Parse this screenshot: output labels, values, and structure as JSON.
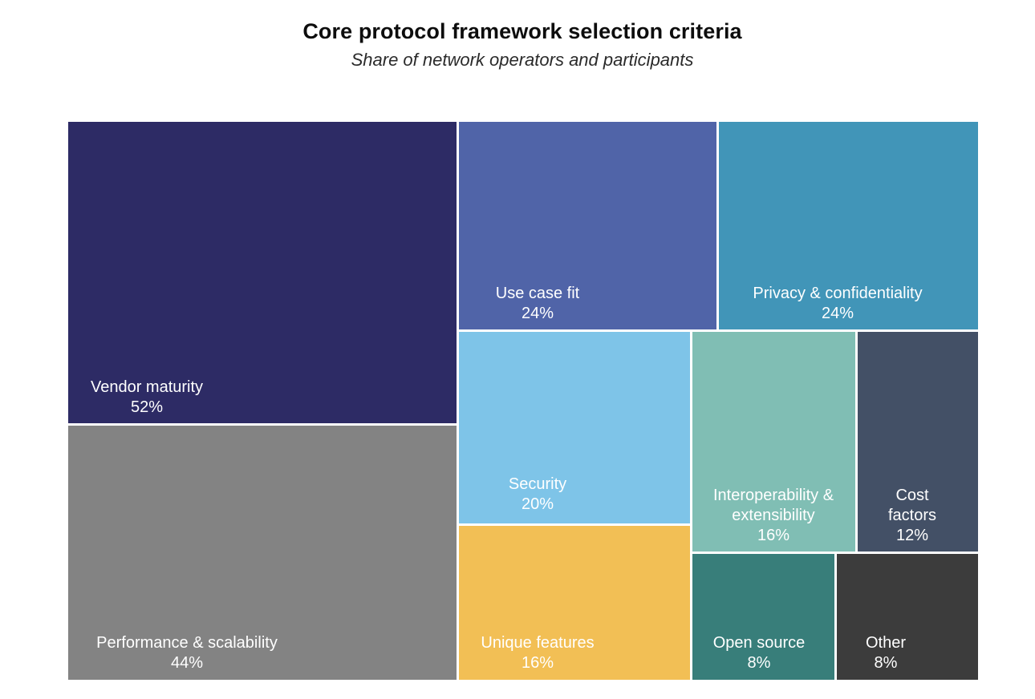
{
  "chart_data": {
    "type": "treemap",
    "title": "Core protocol framework selection criteria",
    "subtitle": "Share of network operators and participants",
    "unit": "%",
    "items": [
      {
        "id": "vendor-maturity",
        "name_lines": [
          "Vendor maturity"
        ],
        "value": 52,
        "value_label": "52%",
        "color": "#2d2b65"
      },
      {
        "id": "performance-scalability",
        "name_lines": [
          "Performance & scalability"
        ],
        "value": 44,
        "value_label": "44%",
        "color": "#838383"
      },
      {
        "id": "use-case-fit",
        "name_lines": [
          "Use case fit"
        ],
        "value": 24,
        "value_label": "24%",
        "color": "#5064a8"
      },
      {
        "id": "privacy-confidentiality",
        "name_lines": [
          "Privacy & confidentiality"
        ],
        "value": 24,
        "value_label": "24%",
        "color": "#4195b8"
      },
      {
        "id": "security",
        "name_lines": [
          "Security"
        ],
        "value": 20,
        "value_label": "20%",
        "color": "#7ec4e8"
      },
      {
        "id": "unique-features",
        "name_lines": [
          "Unique features"
        ],
        "value": 16,
        "value_label": "16%",
        "color": "#f2bf55"
      },
      {
        "id": "interoperability-extensibility",
        "name_lines": [
          "Interoperability &",
          "extensibility"
        ],
        "value": 16,
        "value_label": "16%",
        "color": "#80beb4"
      },
      {
        "id": "cost-factors",
        "name_lines": [
          "Cost",
          "factors"
        ],
        "value": 12,
        "value_label": "12%",
        "color": "#435066"
      },
      {
        "id": "open-source",
        "name_lines": [
          "Open source"
        ],
        "value": 8,
        "value_label": "8%",
        "color": "#387e7a"
      },
      {
        "id": "other",
        "name_lines": [
          "Other"
        ],
        "value": 8,
        "value_label": "8%",
        "color": "#3c3c3c"
      }
    ]
  }
}
